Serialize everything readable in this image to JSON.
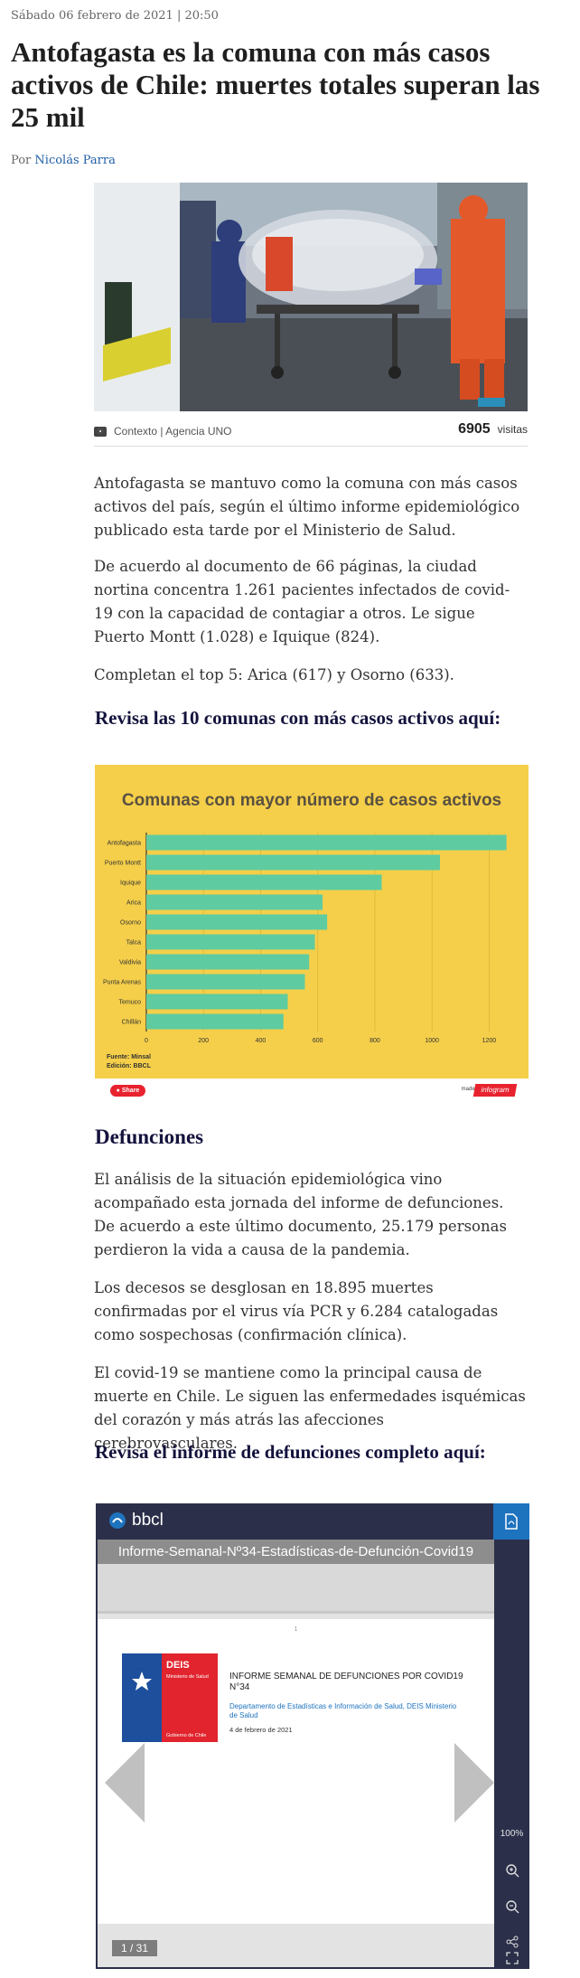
{
  "article": {
    "dateline": "Sábado 06 febrero de 2021 | 20:50",
    "title": "Antofagasta es la comuna con más casos activos de Chile: muertes totales superan las 25 mil",
    "byline_prefix": "Por",
    "author": "Nicolás Parra"
  },
  "photo": {
    "caption": "Contexto | Agencia UNO",
    "visits_count": "6905",
    "visits_label": "visitas"
  },
  "paragraphs": {
    "p1": "Antofagasta se mantuvo como la comuna con más casos activos del país, según el último informe epidemiológico publicado esta tarde por el Ministerio de Salud.",
    "p2": "De acuerdo al documento de 66 páginas, la ciudad nortina concentra 1.261 pacientes infectados de covid-19 con la capacidad de contagiar a otros. Le sigue Puerto Montt (1.028) e Iquique (824).",
    "p3": "Completan el top 5: Arica (617) y Osorno (633).",
    "p4": "El análisis de la situación epidemiológica vino acompañado esta jornada del informe de defunciones. De acuerdo a este último documento, 25.179 personas perdieron la vida a causa de la pandemia.",
    "p5": "Los decesos se desglosan en 18.895 muertes confirmadas por el virus vía PCR y 6.284 catalogadas como sospechosas (confirmación clínica).",
    "p6": "El covid-19 se mantiene como la principal causa de muerte en Chile. Le siguen las enfermedades isquémicas del corazón y más atrás las afecciones cerebrovasculares."
  },
  "headings": {
    "chart_link": "Revisa las 10 comunas con más casos activos aquí:",
    "defunciones": "Defunciones",
    "report_link": "Revisa el informe de defunciones completo aquí:"
  },
  "chart_data": {
    "type": "bar",
    "orientation": "horizontal",
    "title": "Comunas con mayor número de casos activos",
    "categories": [
      "Antofagasta",
      "Puerto Montt",
      "Iquique",
      "Arica",
      "Osorno",
      "Talca",
      "Valdivia",
      "Punta Arenas",
      "Temuco",
      "Chillán"
    ],
    "values": [
      1261,
      1028,
      824,
      617,
      633,
      590,
      570,
      555,
      495,
      480
    ],
    "x_ticks": [
      "0",
      "200",
      "400",
      "600",
      "800",
      "1000",
      "1200"
    ],
    "xlim": [
      0,
      1300
    ],
    "source": "Fuente: Minsal",
    "edition": "Edición: BBCL",
    "bar_color": "#5fcba0",
    "background": "#f5cf4a"
  },
  "chart_footer": {
    "share": "Share",
    "made_with": "made with",
    "brand": "infogram"
  },
  "viewer": {
    "brand": "bbcl",
    "doc_title": "Informe-Semanal-Nº34-Estadísticas-de-Defunción-Covid19",
    "page_number_top": "1",
    "logo_title": "DEIS",
    "logo_subtitle": "Ministerio de Salud",
    "logo_footer": "Gobierno de Chile",
    "report_title": "INFORME SEMANAL DE DEFUNCIONES POR COVID19 N°34",
    "department": "Departamento de Estadísticas e Información de Salud, DEIS Ministerio de Salud",
    "date": "4 de febrero de 2021",
    "page_counter": "1 / 31",
    "zoom": "100%"
  }
}
